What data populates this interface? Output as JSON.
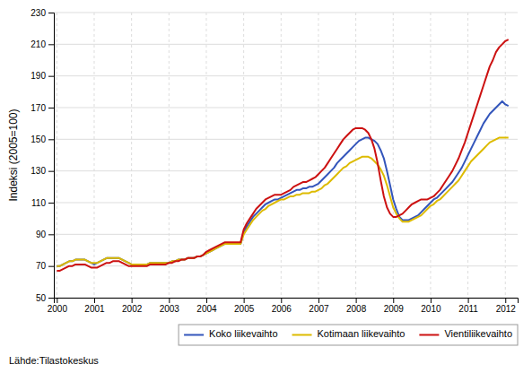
{
  "chart_data": {
    "type": "line",
    "ylabel": "Indeksi (2005=100)",
    "annotation": "Lähde:Tilastokeskus",
    "x": [
      2000,
      2000.0833333333,
      2000.1666666667,
      2000.25,
      2000.3333333333,
      2000.4166666667,
      2000.5,
      2000.5833333333,
      2000.6666666667,
      2000.75,
      2000.8333333333,
      2000.9166666667,
      2001,
      2001.0833333333,
      2001.1666666667,
      2001.25,
      2001.3333333333,
      2001.4166666667,
      2001.5,
      2001.5833333333,
      2001.6666666667,
      2001.75,
      2001.8333333333,
      2001.9166666667,
      2002,
      2002.0833333333,
      2002.1666666667,
      2002.25,
      2002.3333333333,
      2002.4166666667,
      2002.5,
      2002.5833333333,
      2002.6666666667,
      2002.75,
      2002.8333333333,
      2002.9166666667,
      2003,
      2003.0833333333,
      2003.1666666667,
      2003.25,
      2003.3333333333,
      2003.4166666667,
      2003.5,
      2003.5833333333,
      2003.6666666667,
      2003.75,
      2003.8333333333,
      2003.9166666667,
      2004,
      2004.0833333333,
      2004.1666666667,
      2004.25,
      2004.3333333333,
      2004.4166666667,
      2004.5,
      2004.5833333333,
      2004.6666666667,
      2004.75,
      2004.8333333333,
      2004.9166666667,
      2005,
      2005.0833333333,
      2005.1666666667,
      2005.25,
      2005.3333333333,
      2005.4166666667,
      2005.5,
      2005.5833333333,
      2005.6666666667,
      2005.75,
      2005.8333333333,
      2005.9166666667,
      2006,
      2006.0833333333,
      2006.1666666667,
      2006.25,
      2006.3333333333,
      2006.4166666667,
      2006.5,
      2006.5833333333,
      2006.6666666667,
      2006.75,
      2006.8333333333,
      2006.9166666667,
      2007,
      2007.0833333333,
      2007.1666666667,
      2007.25,
      2007.3333333333,
      2007.4166666667,
      2007.5,
      2007.5833333333,
      2007.6666666667,
      2007.75,
      2007.8333333333,
      2007.9166666667,
      2008,
      2008.0833333333,
      2008.1666666667,
      2008.25,
      2008.3333333333,
      2008.4166666667,
      2008.5,
      2008.5833333333,
      2008.6666666667,
      2008.75,
      2008.8333333333,
      2008.9166666667,
      2009,
      2009.0833333333,
      2009.1666666667,
      2009.25,
      2009.3333333333,
      2009.4166666667,
      2009.5,
      2009.5833333333,
      2009.6666666667,
      2009.75,
      2009.8333333333,
      2009.9166666667,
      2010,
      2010.0833333333,
      2010.1666666667,
      2010.25,
      2010.3333333333,
      2010.4166666667,
      2010.5,
      2010.5833333333,
      2010.6666666667,
      2010.75,
      2010.8333333333,
      2010.9166666667,
      2011,
      2011.0833333333,
      2011.1666666667,
      2011.25,
      2011.3333333333,
      2011.4166666667,
      2011.5,
      2011.5833333333,
      2011.6666666667,
      2011.75,
      2011.8333333333,
      2011.9166666667,
      2012,
      2012.0833333333
    ],
    "series": [
      {
        "name": "Koko liikevaihto",
        "color": "#3355bb",
        "values": [
          70,
          70,
          71,
          72,
          73,
          73,
          74,
          74,
          74,
          74,
          73,
          72,
          71,
          72,
          73,
          74,
          75,
          75,
          75,
          75,
          75,
          74,
          73,
          72,
          71,
          71,
          71,
          71,
          71,
          71,
          72,
          72,
          72,
          72,
          72,
          72,
          72,
          73,
          73,
          74,
          74,
          74,
          75,
          75,
          75,
          76,
          76,
          77,
          78,
          79,
          80,
          81,
          82,
          83,
          84,
          84,
          84,
          84,
          84,
          84,
          91,
          95,
          98,
          101,
          103,
          105,
          107,
          109,
          110,
          111,
          112,
          112,
          113,
          114,
          115,
          116,
          117,
          118,
          118,
          119,
          119,
          120,
          120,
          121,
          122,
          124,
          126,
          128,
          130,
          132,
          135,
          137,
          139,
          141,
          143,
          145,
          147,
          149,
          150,
          151,
          151,
          150,
          149,
          147,
          143,
          138,
          130,
          121,
          112,
          106,
          101,
          99,
          99,
          99,
          100,
          101,
          102,
          104,
          106,
          108,
          110,
          112,
          113,
          115,
          117,
          119,
          121,
          123,
          126,
          129,
          132,
          136,
          140,
          144,
          148,
          152,
          156,
          160,
          163,
          166,
          168,
          170,
          172,
          174,
          172,
          171
        ]
      },
      {
        "name": "Kotimaan liikevaihto",
        "color": "#ddbb00",
        "values": [
          70,
          70,
          71,
          72,
          73,
          73,
          74,
          74,
          74,
          74,
          73,
          72,
          72,
          72,
          73,
          74,
          75,
          75,
          75,
          75,
          75,
          74,
          73,
          72,
          71,
          71,
          71,
          71,
          71,
          71,
          72,
          72,
          72,
          72,
          72,
          72,
          72,
          73,
          73,
          74,
          74,
          74,
          75,
          75,
          75,
          76,
          76,
          77,
          78,
          79,
          80,
          81,
          82,
          83,
          84,
          84,
          84,
          84,
          84,
          84,
          90,
          93,
          96,
          99,
          101,
          103,
          105,
          106,
          108,
          109,
          110,
          111,
          112,
          112,
          113,
          114,
          114,
          115,
          115,
          116,
          116,
          116,
          117,
          117,
          118,
          119,
          121,
          122,
          124,
          126,
          128,
          130,
          132,
          133,
          135,
          136,
          137,
          138,
          139,
          139,
          139,
          138,
          136,
          134,
          131,
          127,
          121,
          114,
          107,
          103,
          100,
          98,
          98,
          98,
          99,
          100,
          101,
          102,
          104,
          106,
          108,
          109,
          111,
          112,
          114,
          116,
          118,
          120,
          122,
          124,
          127,
          130,
          133,
          136,
          138,
          140,
          142,
          144,
          146,
          148,
          149,
          150,
          151,
          151,
          151,
          151
        ]
      },
      {
        "name": "Vientiliikevaihto",
        "color": "#cc1111",
        "values": [
          67,
          67,
          68,
          69,
          70,
          70,
          71,
          71,
          71,
          71,
          70,
          69,
          69,
          69,
          70,
          71,
          72,
          72,
          73,
          73,
          73,
          72,
          71,
          70,
          70,
          70,
          70,
          70,
          70,
          70,
          71,
          71,
          71,
          71,
          71,
          71,
          72,
          72,
          73,
          73,
          74,
          74,
          75,
          75,
          75,
          76,
          76,
          77,
          79,
          80,
          81,
          82,
          83,
          84,
          85,
          85,
          85,
          85,
          85,
          85,
          93,
          97,
          100,
          103,
          106,
          108,
          110,
          112,
          113,
          114,
          115,
          115,
          115,
          116,
          117,
          118,
          120,
          121,
          122,
          123,
          123,
          124,
          125,
          126,
          128,
          130,
          132,
          135,
          138,
          141,
          144,
          147,
          150,
          152,
          154,
          156,
          157,
          157,
          157,
          156,
          154,
          150,
          144,
          135,
          124,
          114,
          107,
          103,
          101,
          101,
          102,
          103,
          105,
          107,
          109,
          110,
          111,
          112,
          112,
          112,
          113,
          114,
          116,
          118,
          121,
          124,
          127,
          130,
          134,
          138,
          143,
          148,
          154,
          160,
          166,
          172,
          178,
          184,
          190,
          196,
          200,
          205,
          208,
          210,
          212,
          213
        ]
      }
    ],
    "xlim": [
      1999.92,
      2012.33
    ],
    "xticks": [
      2000,
      2001,
      2002,
      2003,
      2004,
      2005,
      2006,
      2007,
      2008,
      2009,
      2010,
      2011,
      2012
    ],
    "ylim": [
      50,
      230
    ],
    "yticks": [
      50,
      70,
      90,
      110,
      130,
      150,
      170,
      190,
      210,
      230
    ],
    "grid": true,
    "legend": "lower right"
  }
}
